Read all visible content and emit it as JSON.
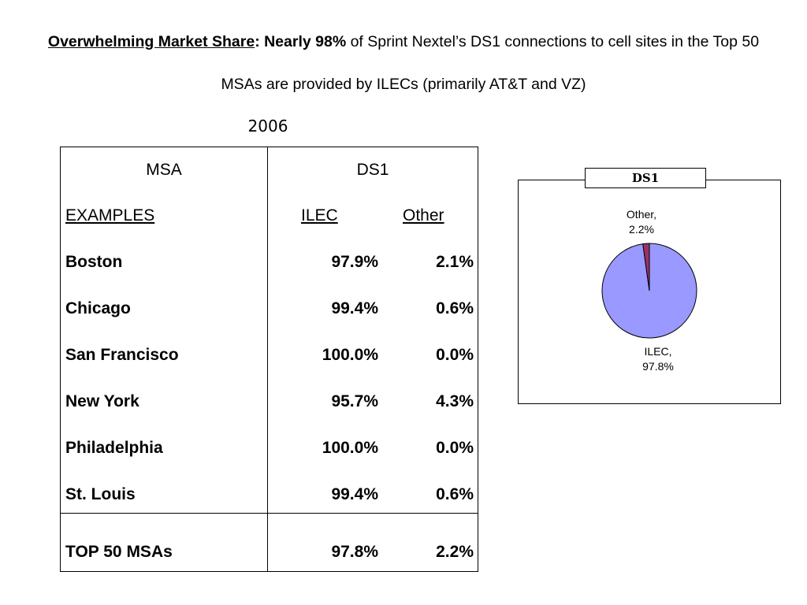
{
  "headline": {
    "part1": "Overwhelming Market Share",
    "part2": ": Nearly 98%",
    "part3": " of Sprint Nextel’s DS1 connections to cell sites in the Top 50 MSAs are provided by ILECs (primarily AT&T and VZ)"
  },
  "year": "2006",
  "table": {
    "col_msa": "MSA",
    "col_ds1": "DS1",
    "sub_examples": "EXAMPLES",
    "sub_ilec": "ILEC",
    "sub_other": "Other",
    "rows": [
      {
        "msa": "Boston",
        "ilec": "97.9%",
        "other": "2.1%"
      },
      {
        "msa": "Chicago",
        "ilec": "99.4%",
        "other": "0.6%"
      },
      {
        "msa": "San Francisco",
        "ilec": "100.0%",
        "other": "0.0%"
      },
      {
        "msa": "New York",
        "ilec": "95.7%",
        "other": "4.3%"
      },
      {
        "msa": "Philadelphia",
        "ilec": "100.0%",
        "other": "0.0%"
      },
      {
        "msa": "St. Louis",
        "ilec": "99.4%",
        "other": "0.6%"
      }
    ],
    "total": {
      "msa": "TOP 50 MSAs",
      "ilec": "97.8%",
      "other": "2.2%"
    }
  },
  "chart_data": {
    "type": "pie",
    "title": "DS1",
    "slices": [
      {
        "label": "ILEC",
        "value": 97.8,
        "display": "97.8%",
        "color": "#9999ff"
      },
      {
        "label": "Other",
        "value": 2.2,
        "display": "2.2%",
        "color": "#993366"
      }
    ]
  }
}
